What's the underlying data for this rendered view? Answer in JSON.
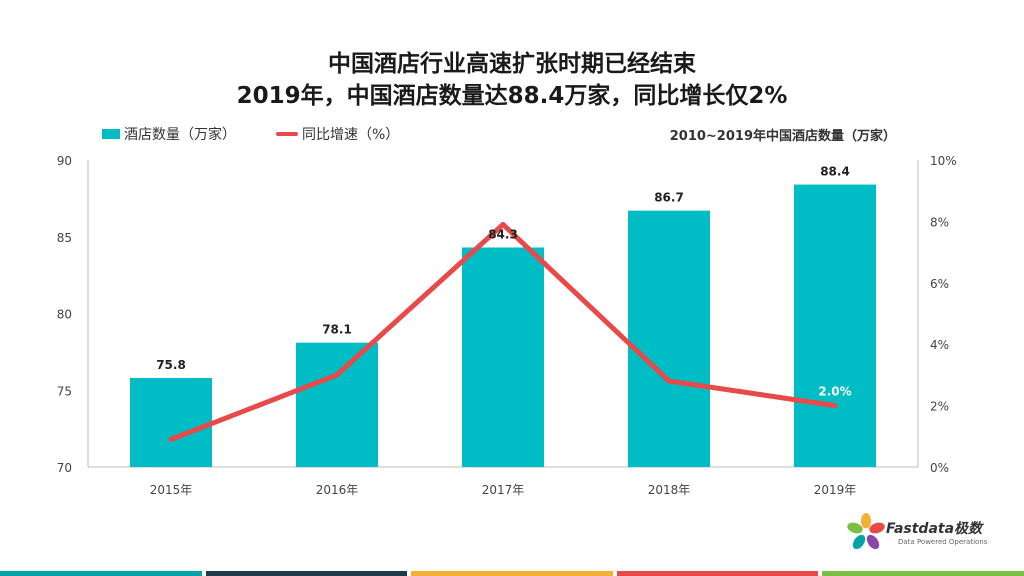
{
  "title": {
    "line1": "中国酒店行业高速扩张时期已经结束",
    "line2": "2019年，中国酒店数量达88.4万家，同比增长仅2%"
  },
  "legend": {
    "bar_label": "酒店数量（万家）",
    "line_label": "同比增速（%）"
  },
  "chart_note": "2010~2019年中国酒店数量（万家）",
  "chart_data": {
    "type": "bar",
    "categories": [
      "2015年",
      "2016年",
      "2017年",
      "2018年",
      "2019年"
    ],
    "series": [
      {
        "name": "酒店数量（万家）",
        "type": "bar",
        "axis": "left",
        "values": [
          75.8,
          78.1,
          84.3,
          86.7,
          88.4
        ],
        "labels": [
          "75.8",
          "78.1",
          "84.3",
          "86.7",
          "88.4"
        ]
      },
      {
        "name": "同比增速（%）",
        "type": "line",
        "axis": "right",
        "values": [
          0.9,
          3.0,
          7.9,
          2.8,
          2.0
        ],
        "labels": [
          "",
          "",
          "",
          "",
          "2.0%"
        ]
      }
    ],
    "ylim_left": [
      70,
      90
    ],
    "yticks_left": [
      "70",
      "75",
      "80",
      "85",
      "90"
    ],
    "ylim_right": [
      0,
      10
    ],
    "yticks_right": [
      "0%",
      "2%",
      "4%",
      "6%",
      "8%",
      "10%"
    ],
    "colors": {
      "bar": "#00BCC4",
      "line": "#E84A4A"
    },
    "grid": false
  },
  "logo": {
    "name": "Fastdata极数",
    "tagline": "Data Powered Operations"
  },
  "stripe_colors": [
    "#00A3A6",
    "#1F3A4D",
    "#F2B134",
    "#E84A4A",
    "#7BC043"
  ]
}
